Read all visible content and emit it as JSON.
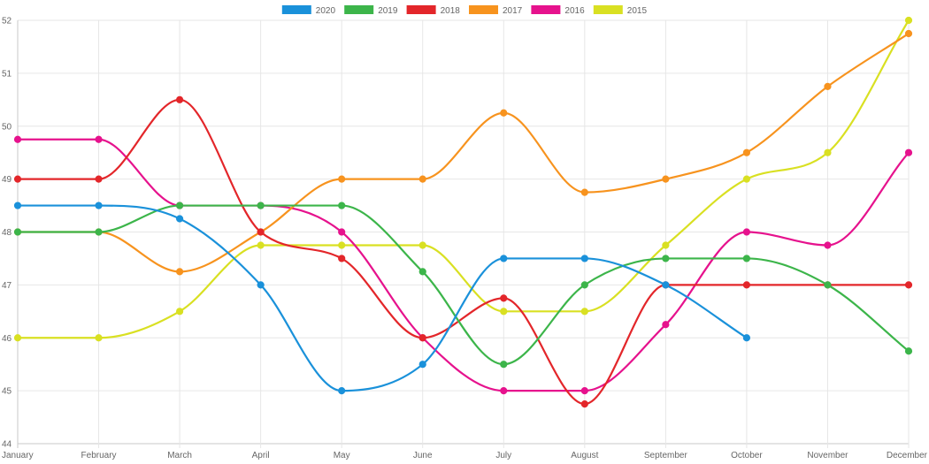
{
  "chart_data": {
    "type": "line",
    "categories": [
      "January",
      "February",
      "March",
      "April",
      "May",
      "June",
      "July",
      "August",
      "September",
      "October",
      "November",
      "December"
    ],
    "ylim": [
      44,
      52
    ],
    "yticks": [
      44,
      45,
      46,
      47,
      48,
      49,
      50,
      51,
      52
    ],
    "grid": true,
    "legend_position": "top-center",
    "series": [
      {
        "name": "2020",
        "color": "#1a91da",
        "values": [
          48.5,
          48.5,
          48.25,
          47,
          45,
          45.5,
          47.5,
          47.5,
          47,
          46,
          null,
          null
        ]
      },
      {
        "name": "2019",
        "color": "#3cb54a",
        "values": [
          48,
          48,
          48.5,
          48.5,
          48.5,
          47.25,
          45.5,
          47,
          47.5,
          47.5,
          47,
          45.75
        ]
      },
      {
        "name": "2018",
        "color": "#e3262a",
        "values": [
          49,
          49,
          50.5,
          48,
          47.5,
          46,
          46.75,
          44.75,
          47,
          47,
          47,
          47
        ]
      },
      {
        "name": "2017",
        "color": "#f7931e",
        "values": [
          48,
          48,
          47.25,
          48,
          49,
          49,
          50.25,
          48.75,
          49,
          49.5,
          50.75,
          51.75
        ]
      },
      {
        "name": "2016",
        "color": "#e6128d",
        "values": [
          49.75,
          49.75,
          48.5,
          48.5,
          48,
          46,
          45,
          45,
          46.25,
          48,
          47.75,
          49.5
        ]
      },
      {
        "name": "2015",
        "color": "#d9e022",
        "values": [
          46,
          46,
          46.5,
          47.75,
          47.75,
          47.75,
          46.5,
          46.5,
          47.75,
          49,
          49.5,
          52
        ]
      }
    ]
  }
}
